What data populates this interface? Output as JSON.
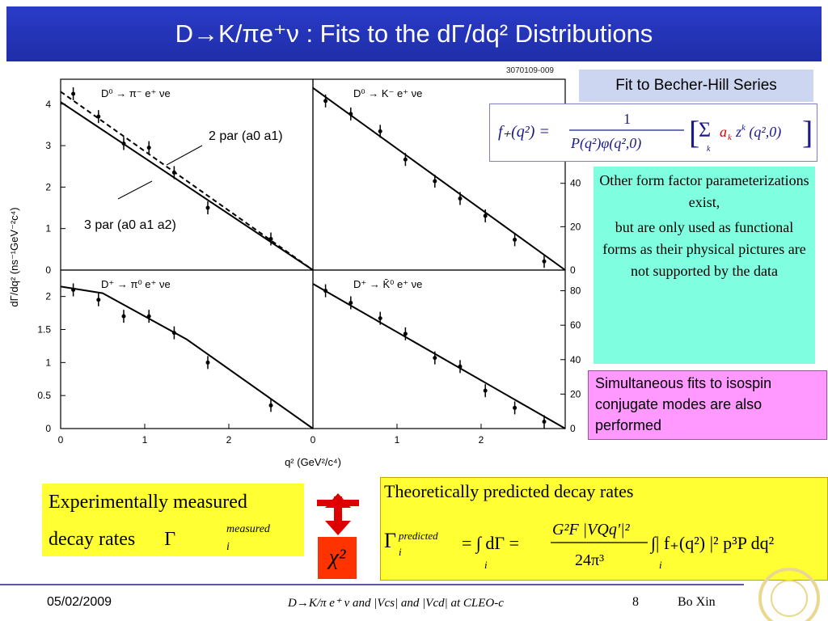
{
  "title": "D→K/πe⁺ν : Fits to the dΓ/dq² Distributions",
  "figure_id": "3070109-009",
  "becher_hill_label": "Fit to Becher-Hill Series",
  "other_param_text": [
    "Other form factor parameterizations exist,",
    "but are only used as functional forms as their physical pictures are not supported by the data"
  ],
  "simultaneous_text": "Simultaneous fits to isospin conjugate modes are also performed",
  "experimental_text": [
    "Experimentally measured",
    "decay rates"
  ],
  "gamma_measured": "measured",
  "theoretical_text": "Theoretically predicted decay rates",
  "gamma_predicted": "predicted",
  "chi2": "χ²",
  "annotations": {
    "two_par": "2 par (a0 a1)",
    "three_par": "3 par (a0 a1 a2)"
  },
  "footer": {
    "date": "05/02/2009",
    "center": "D→K/π e⁺ ν and |Vcs| and |Vcd| at CLEO-c",
    "page": "8",
    "author": "Bo Xin"
  },
  "colors": {
    "title_bg": "#2233bb",
    "bh_bg": "#cdd6f0",
    "other_bg": "#7fffe0",
    "simul_bg": "#ff99ff",
    "yellow": "#ffff33",
    "chi_bg": "#ff3300"
  },
  "chart_data": [
    {
      "type": "scatter",
      "title": "D⁰ → π⁻ e⁺ νe",
      "x": [
        0.15,
        0.45,
        0.75,
        1.05,
        1.35,
        1.75,
        2.5
      ],
      "y": [
        4.25,
        3.7,
        3.05,
        2.95,
        2.35,
        1.5,
        0.75
      ],
      "ylim": [
        0,
        4.6
      ],
      "xlim": [
        0,
        3
      ],
      "yticks": [
        "0",
        "1",
        "2",
        "3",
        "4"
      ],
      "xticks": [],
      "fits": [
        {
          "name": "2 par",
          "x": [
            0,
            3
          ],
          "y": [
            4.3,
            0
          ]
        },
        {
          "name": "3 par",
          "x": [
            0,
            3
          ],
          "y": [
            4.05,
            0
          ]
        }
      ]
    },
    {
      "type": "scatter",
      "title": "D⁰ → K⁻ e⁺ νe",
      "x": [
        0.15,
        0.45,
        0.8,
        1.1,
        1.45,
        1.75,
        2.05,
        2.4,
        2.75
      ],
      "y": [
        78,
        72,
        64,
        51,
        41,
        33,
        25,
        14,
        4
      ],
      "ylim": [
        0,
        88
      ],
      "xlim": [
        0,
        3
      ],
      "yticks": [
        "0",
        "20",
        "40"
      ],
      "xticks": [],
      "fits": [
        {
          "name": "fit",
          "x": [
            0,
            3
          ],
          "y": [
            84,
            0
          ]
        }
      ]
    },
    {
      "type": "scatter",
      "title": "D⁺ → π⁰ e⁺ νe",
      "x": [
        0.15,
        0.45,
        0.75,
        1.05,
        1.35,
        1.75,
        2.5
      ],
      "y": [
        2.1,
        1.95,
        1.7,
        1.7,
        1.45,
        1.0,
        0.35
      ],
      "ylim": [
        0,
        2.4
      ],
      "xlim": [
        0,
        3
      ],
      "yticks": [
        "0",
        "0.5",
        "1",
        "1.5",
        "2"
      ],
      "xticks": [
        "0",
        "1",
        "2"
      ],
      "fits": [
        {
          "name": "fit",
          "x": [
            0,
            0.5,
            1.5,
            3
          ],
          "y": [
            2.15,
            2.05,
            1.35,
            0
          ]
        }
      ]
    },
    {
      "type": "scatter",
      "title": "D⁺ → K̄⁰ e⁺ νe",
      "x": [
        0.15,
        0.45,
        0.8,
        1.1,
        1.45,
        1.75,
        2.05,
        2.4,
        2.75
      ],
      "y": [
        80,
        73,
        64,
        55,
        41,
        36,
        22,
        12,
        4
      ],
      "ylim": [
        0,
        92
      ],
      "xlim": [
        0,
        3
      ],
      "yticks": [
        "0",
        "20",
        "40",
        "60",
        "80"
      ],
      "xticks": [
        "0",
        "1",
        "2"
      ],
      "fits": [
        {
          "name": "fit",
          "x": [
            0,
            3
          ],
          "y": [
            84,
            0
          ]
        }
      ]
    }
  ],
  "axis": {
    "ylabel": "dΓ/dq² (ns⁻¹GeV⁻²c⁴)",
    "xlabel": "q² (GeV²/c⁴)"
  }
}
